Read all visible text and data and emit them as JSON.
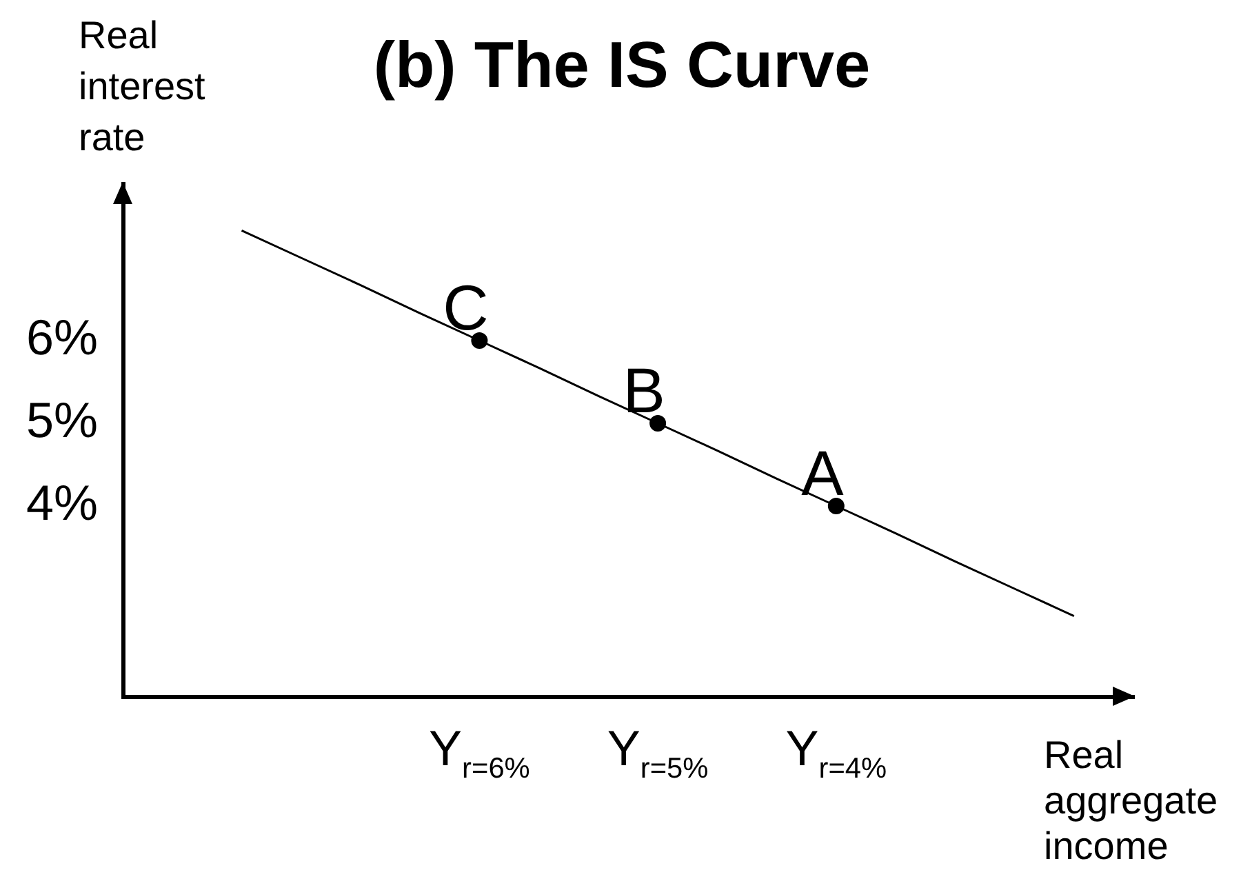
{
  "chart_data": {
    "type": "line",
    "title": "(b) The IS Curve",
    "xlabel": "Real aggregate income",
    "ylabel": "Real interest rate",
    "categories": [
      null,
      null,
      null,
      null,
      null,
      null,
      "Y$_{r=6%}$",
      null,
      null,
      "Y$_{r=5%}$",
      null,
      null,
      "Y$_{r=4%}$",
      null,
      null,
      null,
      null,
      null
    ],
    "series": [
      {
        "type": "line",
        "color": "#000000",
        "marker": "none",
        "values": [
          null,
          null,
          7.33,
          7,
          6.67,
          6.33,
          6,
          5.67,
          5.33,
          5,
          4.67,
          4.33,
          4,
          3.67,
          3.33,
          3,
          2.67,
          null
        ]
      },
      {
        "type": "scatter",
        "color": "#000000",
        "marker": "circle",
        "values": [
          null,
          null,
          null,
          null,
          null,
          null,
          6,
          null,
          null,
          5,
          null,
          null,
          4,
          null,
          null,
          null,
          null,
          null
        ]
      }
    ],
    "ylim": [
      1.7,
      7.9
    ],
    "yticks": [
      {
        "value": 6,
        "label": "6%"
      },
      {
        "value": 5,
        "label": "5%"
      },
      {
        "value": 4,
        "label": "4%"
      }
    ],
    "annotations": [
      {
        "text": "C",
        "x": "Y$_{r=6%}$",
        "y": 6
      },
      {
        "text": "B",
        "x": "Y$_{r=5%}$",
        "y": 5
      },
      {
        "text": "A",
        "x": "Y$_{r=4%}$",
        "y": 4
      }
    ],
    "grid": false,
    "legend": false
  }
}
